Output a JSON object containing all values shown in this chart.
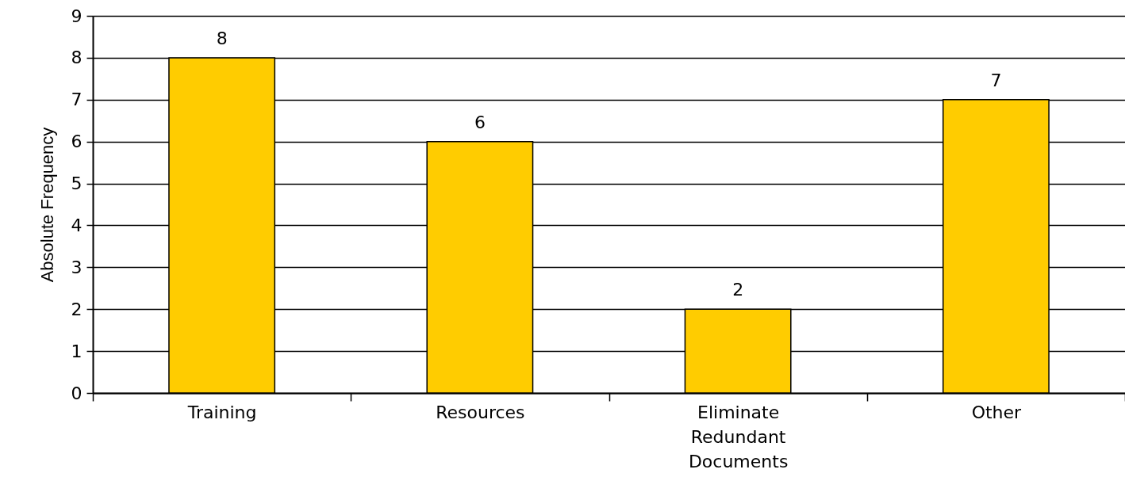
{
  "chart_data": {
    "type": "bar",
    "ylabel": "Absolute Frequency",
    "categories": [
      "Training",
      "Resources",
      "Eliminate Redundant Documents",
      "Other"
    ],
    "values": [
      8,
      6,
      2,
      7
    ],
    "color": "#ffcc00",
    "ylim": [
      0,
      9
    ],
    "yticks": [
      0,
      1,
      2,
      3,
      4,
      5,
      6,
      7,
      8,
      9
    ],
    "grid": "y",
    "data_labels": true
  }
}
